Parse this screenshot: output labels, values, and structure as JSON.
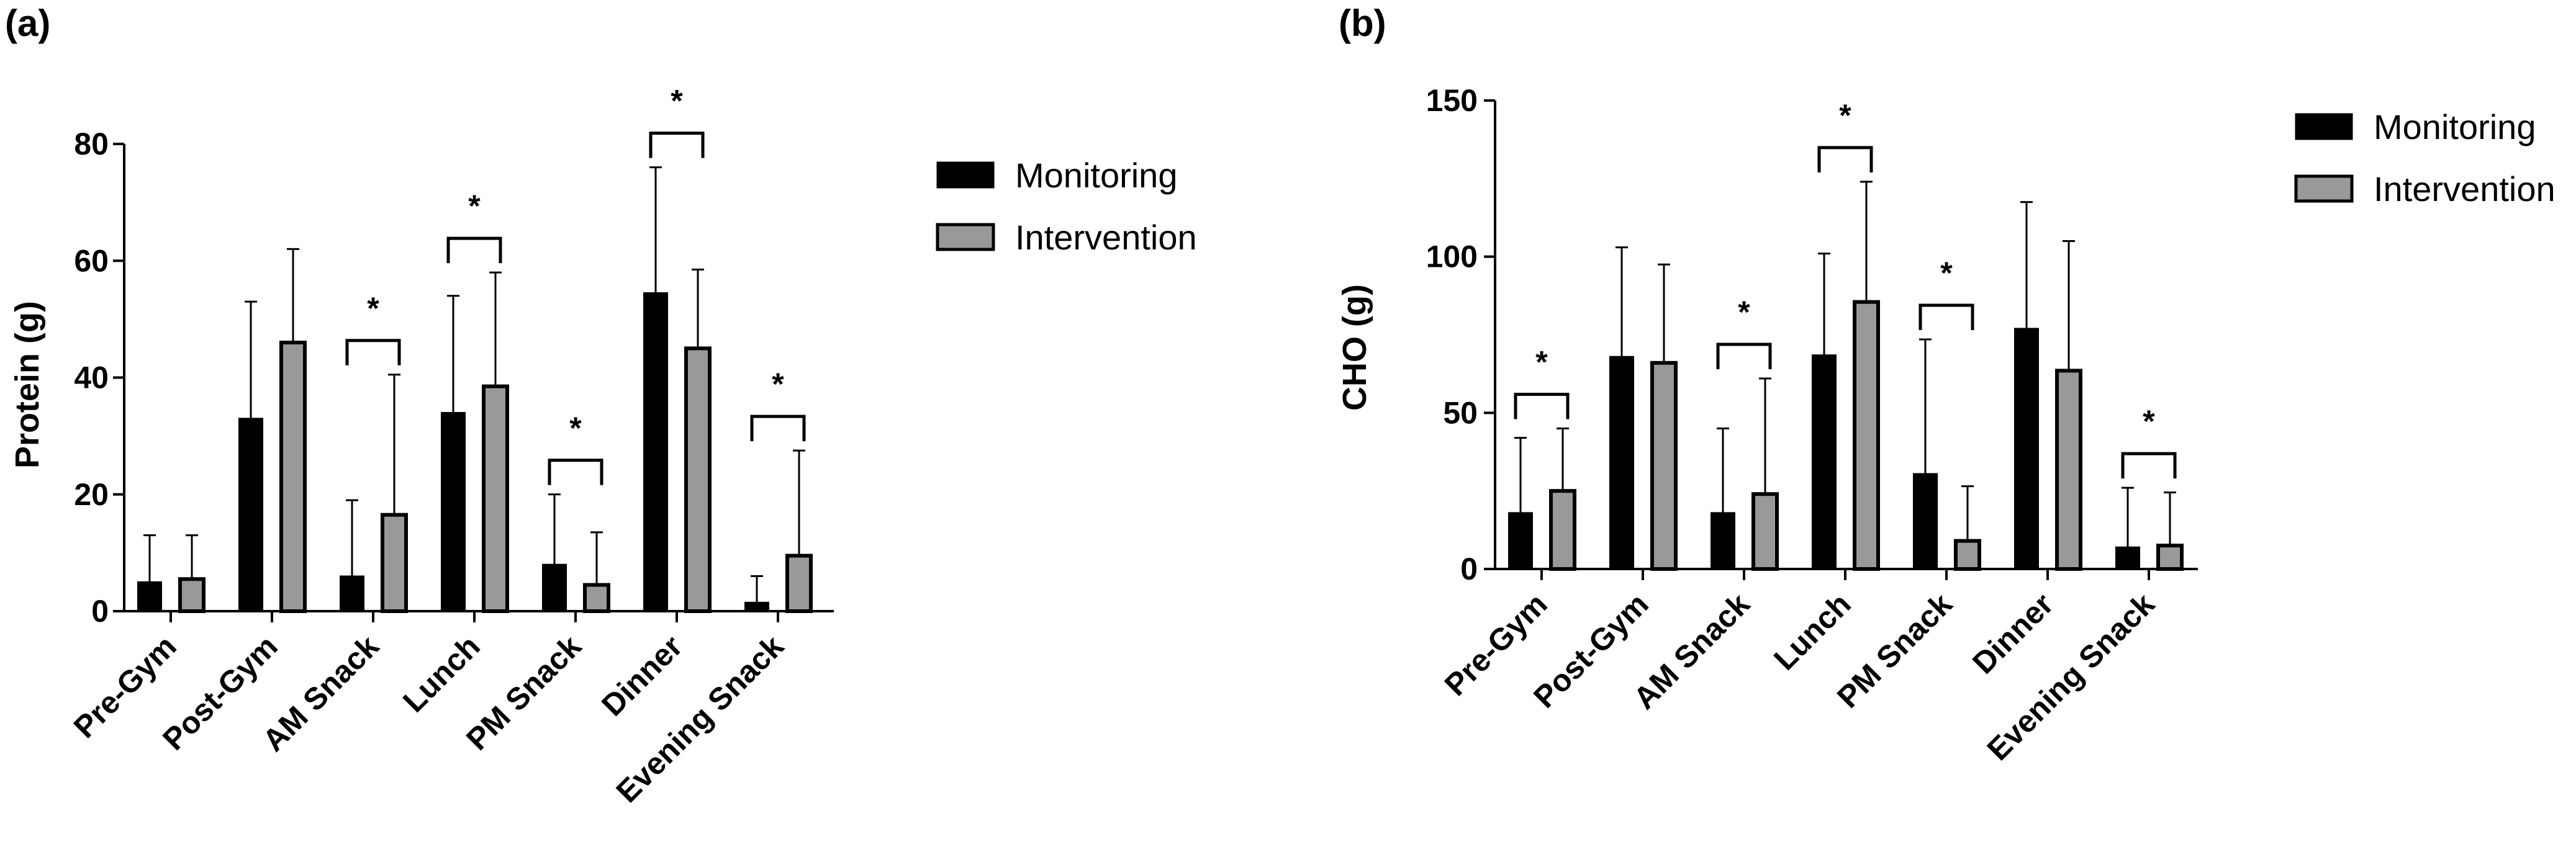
{
  "chart_data": [
    {
      "type": "bar",
      "panel_label": "(a)",
      "ylabel": "Protein (g)",
      "ylim": [
        0,
        80
      ],
      "yticks": [
        0,
        20,
        40,
        60,
        80
      ],
      "categories": [
        "Pre-Gym",
        "Post-Gym",
        "AM Snack",
        "Lunch",
        "PM Snack",
        "Dinner",
        "Evening Snack"
      ],
      "series": [
        {
          "name": "Monitoring",
          "color": "#000000",
          "values": [
            5,
            33,
            6,
            34,
            8,
            54.5,
            1.5
          ],
          "errors": [
            8,
            20,
            13,
            20,
            12,
            21.5,
            4.5
          ]
        },
        {
          "name": "Intervention",
          "color": "#999999",
          "values": [
            5.5,
            46,
            16.5,
            38.5,
            4.5,
            45,
            9.5
          ],
          "errors": [
            7.5,
            16,
            24,
            19.5,
            9,
            13.5,
            18
          ]
        }
      ],
      "significance": [
        false,
        false,
        true,
        true,
        true,
        true,
        true
      ],
      "sig_marker": "*",
      "legend_position": "right"
    },
    {
      "type": "bar",
      "panel_label": "(b)",
      "ylabel": "CHO (g)",
      "ylim": [
        0,
        150
      ],
      "yticks": [
        0,
        50,
        100,
        150
      ],
      "categories": [
        "Pre-Gym",
        "Post-Gym",
        "AM Snack",
        "Lunch",
        "PM Snack",
        "Dinner",
        "Evening Snack"
      ],
      "series": [
        {
          "name": "Monitoring",
          "color": "#000000",
          "values": [
            18,
            68,
            18,
            68.5,
            30.5,
            77,
            7
          ],
          "errors": [
            24,
            35,
            27,
            32.5,
            43,
            40.5,
            19
          ]
        },
        {
          "name": "Intervention",
          "color": "#999999",
          "values": [
            25,
            66,
            24,
            85.5,
            9,
            63.5,
            7.5
          ],
          "errors": [
            20,
            31.5,
            37,
            38.5,
            17.5,
            41.5,
            17
          ]
        }
      ],
      "significance": [
        true,
        false,
        true,
        true,
        true,
        false,
        true
      ],
      "sig_marker": "*",
      "legend_position": "right"
    }
  ]
}
